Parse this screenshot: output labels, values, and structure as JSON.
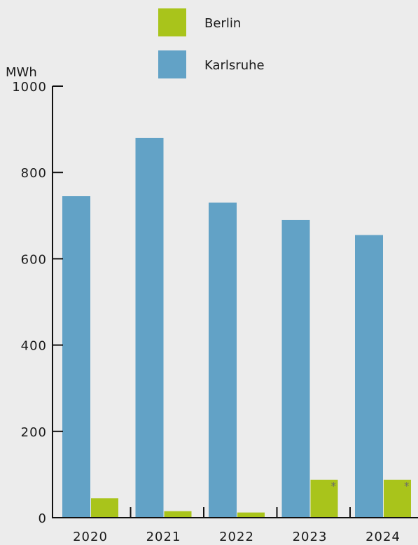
{
  "chart_data": {
    "type": "bar",
    "categories": [
      "2020",
      "2021",
      "2022",
      "2023",
      "2024"
    ],
    "series": [
      {
        "name": "Karlsruhe",
        "values": [
          745,
          880,
          730,
          690,
          655
        ],
        "color": "#62a2c6"
      },
      {
        "name": "Berlin",
        "values": [
          45,
          15,
          12,
          88,
          88
        ],
        "color": "#a9c41b"
      }
    ],
    "notes": {
      "Berlin": [
        "",
        "",
        "",
        "*",
        "*"
      ]
    },
    "legend": [
      "Berlin",
      "Karlsruhe"
    ],
    "legend_position": "top-center",
    "ylabel": "MWh",
    "ylim": [
      0,
      1000
    ],
    "yticks": [
      "0",
      "200",
      "400",
      "600",
      "800",
      "1000"
    ],
    "grid": false
  }
}
